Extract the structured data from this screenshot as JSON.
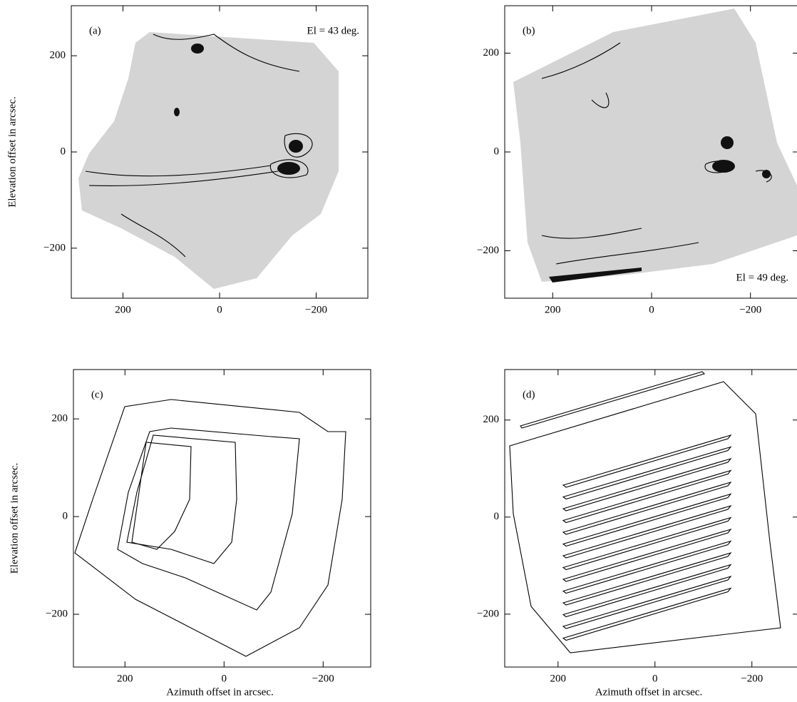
{
  "chart_data": [
    {
      "type": "contour",
      "label": "(a)",
      "annotation": "El = 43 deg.",
      "ylabel": "Elevation offset in arcsec.",
      "xlim": [
        307,
        -307
      ],
      "ylim": [
        -304,
        304
      ],
      "xticks": [
        200,
        0,
        {
          "value": -200,
          "label": "−200"
        }
      ],
      "yticks": [
        {
          "value": -200,
          "label": "−200"
        },
        0,
        200
      ]
    },
    {
      "type": "contour",
      "label": "(b)",
      "annotation": "El = 49 deg.",
      "xlim": [
        297,
        -297
      ],
      "ylim": [
        -296,
        296
      ],
      "xticks": [
        200,
        0,
        {
          "value": -200,
          "label": "−200"
        }
      ],
      "yticks": [
        {
          "value": -200,
          "label": "−200"
        },
        0,
        200
      ]
    },
    {
      "type": "contour",
      "label": "(c)",
      "ylabel": "Elevation offset in arcsec.",
      "xlabel": "Azimuth offset in arcsec.",
      "xlim": [
        304,
        -296
      ],
      "ylim": [
        -308,
        301
      ],
      "xticks": [
        200,
        0,
        {
          "value": -200,
          "label": "−200"
        }
      ],
      "yticks": [
        {
          "value": -200,
          "label": "−200"
        },
        0,
        200
      ]
    },
    {
      "type": "contour",
      "label": "(d)",
      "xlabel": "Azimuth offset in arcsec.",
      "xlim": [
        310,
        -296
      ],
      "ylim": [
        -309,
        304
      ],
      "xticks": [
        200,
        0,
        {
          "value": -200,
          "label": "−200"
        }
      ],
      "yticks": [
        {
          "value": -200,
          "label": "−200"
        },
        0,
        200
      ]
    }
  ]
}
